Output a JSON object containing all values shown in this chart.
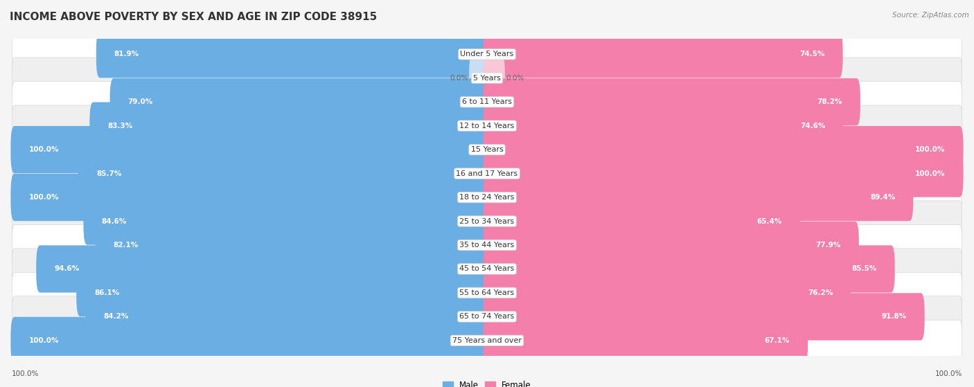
{
  "title": "INCOME ABOVE POVERTY BY SEX AND AGE IN ZIP CODE 38915",
  "source": "Source: ZipAtlas.com",
  "categories": [
    "Under 5 Years",
    "5 Years",
    "6 to 11 Years",
    "12 to 14 Years",
    "15 Years",
    "16 and 17 Years",
    "18 to 24 Years",
    "25 to 34 Years",
    "35 to 44 Years",
    "45 to 54 Years",
    "55 to 64 Years",
    "65 to 74 Years",
    "75 Years and over"
  ],
  "male_values": [
    81.9,
    0.0,
    79.0,
    83.3,
    100.0,
    85.7,
    100.0,
    84.6,
    82.1,
    94.6,
    86.1,
    84.2,
    100.0
  ],
  "female_values": [
    74.5,
    0.0,
    78.2,
    74.6,
    100.0,
    100.0,
    89.4,
    65.4,
    77.9,
    85.5,
    76.2,
    91.8,
    67.1
  ],
  "male_color": "#6aaee3",
  "female_color": "#f47fab",
  "male_light_color": "#c8def4",
  "female_light_color": "#f9c8d8",
  "row_bg_white": "#ffffff",
  "row_bg_gray": "#efefef",
  "row_border": "#d8d8d8",
  "title_fontsize": 11,
  "label_fontsize": 8,
  "value_fontsize": 7.5,
  "source_fontsize": 7.5,
  "legend_fontsize": 8.5,
  "footer_label": "100.0%"
}
